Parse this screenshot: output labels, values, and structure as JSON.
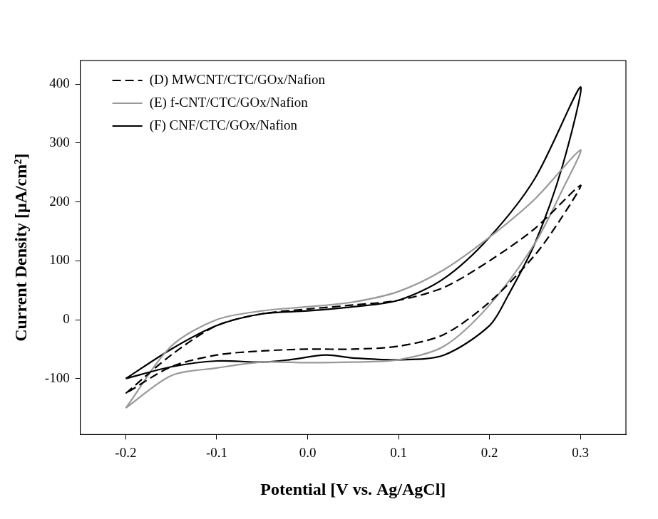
{
  "chart_data": {
    "type": "line",
    "x_label": "Potential [V vs. Ag/AgCl]",
    "y_label": "Current Density [μA/cm²]",
    "xlim": [
      -0.25,
      0.35
    ],
    "xticks": [
      -0.2,
      -0.1,
      {
        "value": 0,
        "label": "0.0"
      },
      0.1,
      0.2,
      0.3
    ],
    "ylim": [
      -195,
      440
    ],
    "yticks": [
      -100,
      0,
      100,
      200,
      300,
      400
    ],
    "grid": false,
    "legend": "upper left",
    "series": [
      {
        "name": "(D) MWCNT/CTC/GOx/Nafion",
        "color": "#000000",
        "line_style": "dashed",
        "x": [
          -0.2,
          -0.15,
          -0.1,
          -0.05,
          0,
          0.05,
          0.1,
          0.15,
          0.2,
          0.25,
          0.3,
          0.28,
          0.25,
          0.2,
          0.15,
          0.1,
          0.05,
          0,
          -0.05,
          -0.1,
          -0.15,
          -0.2
        ],
        "values": [
          -125,
          -60,
          -10,
          10,
          18,
          25,
          33,
          55,
          100,
          155,
          228,
          175,
          110,
          30,
          -25,
          -45,
          -50,
          -50,
          -53,
          -60,
          -80,
          -125
        ]
      },
      {
        "name": "(E) f-CNT/CTC/GOx/Nafion",
        "color": "#999999",
        "line_style": "solid",
        "x": [
          -0.2,
          -0.15,
          -0.1,
          -0.05,
          0,
          0.05,
          0.1,
          0.15,
          0.2,
          0.25,
          0.3,
          0.28,
          0.25,
          0.2,
          0.15,
          0.1,
          0.05,
          0,
          -0.05,
          -0.1,
          -0.15,
          -0.2
        ],
        "values": [
          -150,
          -45,
          0,
          15,
          22,
          30,
          48,
          85,
          140,
          205,
          288,
          220,
          130,
          25,
          -45,
          -68,
          -72,
          -73,
          -72,
          -82,
          -95,
          -150
        ]
      },
      {
        "name": "(F) CNF/CTC/GOx/Nafion",
        "color": "#000000",
        "line_style": "solid",
        "x": [
          -0.2,
          -0.15,
          -0.1,
          -0.05,
          0,
          0.05,
          0.1,
          0.15,
          0.2,
          0.25,
          0.3,
          0.28,
          0.25,
          0.22,
          0.2,
          0.15,
          0.1,
          0.05,
          0.02,
          -0.02,
          -0.05,
          -0.1,
          -0.15,
          -0.2
        ],
        "values": [
          -100,
          -50,
          -10,
          10,
          15,
          22,
          33,
          70,
          140,
          240,
          395,
          260,
          130,
          40,
          -10,
          -60,
          -68,
          -65,
          -60,
          -68,
          -72,
          -70,
          -80,
          -100
        ]
      }
    ]
  }
}
